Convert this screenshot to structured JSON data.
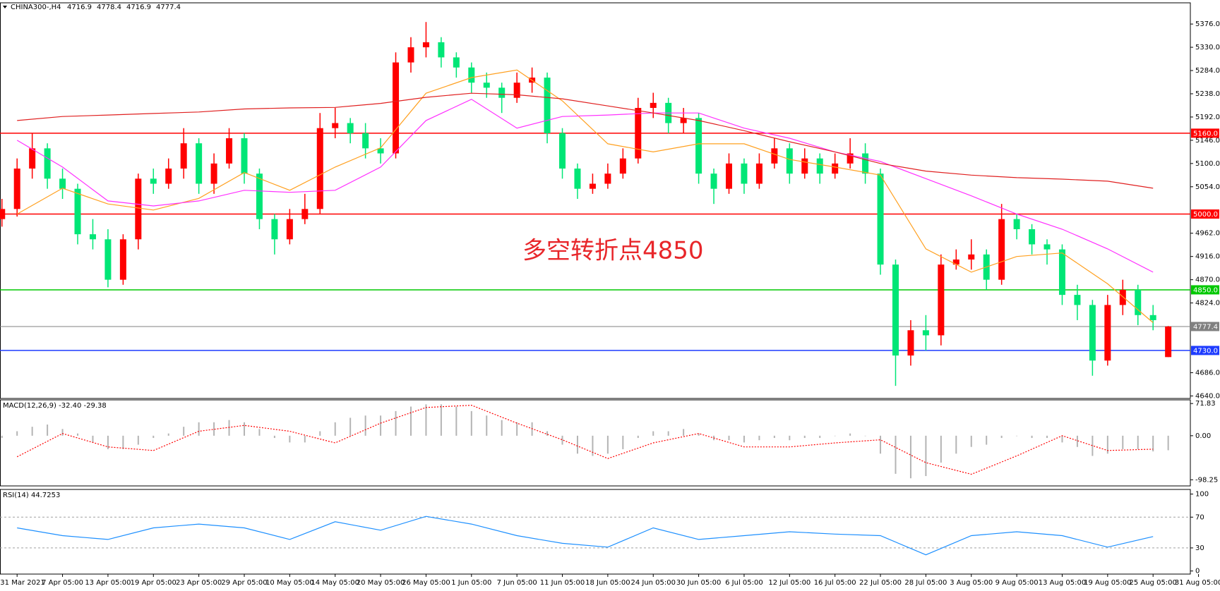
{
  "chart_data": [
    {
      "type": "candlestick",
      "title": "CHINA300-,H4",
      "categories": [
        "31 Mar 2021",
        "7 Apr 05:00",
        "13 Apr 05:00",
        "19 Apr 05:00",
        "23 Apr 05:00",
        "29 Apr 05:00",
        "10 May 05:00",
        "14 May 05:00",
        "20 May 05:00",
        "26 May 05:00",
        "1 Jun 05:00",
        "7 Jun 05:00",
        "11 Jun 05:00",
        "18 Jun 05:00",
        "24 Jun 05:00",
        "30 Jun 05:00",
        "6 Jul 05:00",
        "12 Jul 05:00",
        "16 Jul 05:00",
        "22 Jul 05:00",
        "28 Jul 05:00",
        "3 Aug 05:00",
        "9 Aug 05:00",
        "13 Aug 05:00",
        "19 Aug 05:00",
        "25 Aug 05:00",
        "31 Aug 05:00"
      ],
      "candles": {
        "open": [
          4990,
          5010,
          5090,
          5130,
          5070,
          5050,
          4960,
          4950,
          4870,
          4950,
          5070,
          5060,
          5090,
          5140,
          5060,
          5100,
          5150,
          5080,
          4990,
          4950,
          4990,
          5010,
          5170,
          5180,
          5160,
          5130,
          5120,
          5300,
          5330,
          5340,
          5310,
          5290,
          5260,
          5250,
          5230,
          5260,
          5270,
          5160,
          5090,
          5050,
          5060,
          5080,
          5110,
          5210,
          5220,
          5180,
          5190,
          5080,
          5050,
          5100,
          5060,
          5100,
          5130,
          5080,
          5110,
          5080,
          5100,
          5120,
          5080,
          4900,
          4720,
          4770,
          4760,
          4900,
          4910,
          4920,
          4870,
          4990,
          4970,
          4940,
          4930,
          4840,
          4820,
          4710,
          4820,
          4850,
          4800,
          4716.9
        ],
        "high": [
          5030,
          5110,
          5160,
          5140,
          5090,
          5060,
          4990,
          4970,
          4960,
          5080,
          5090,
          5110,
          5170,
          5150,
          5120,
          5170,
          5160,
          5090,
          5000,
          5010,
          5040,
          5200,
          5210,
          5190,
          5180,
          5150,
          5320,
          5350,
          5380,
          5350,
          5320,
          5300,
          5280,
          5260,
          5280,
          5290,
          5280,
          5170,
          5100,
          5080,
          5100,
          5130,
          5230,
          5240,
          5230,
          5210,
          5200,
          5090,
          5120,
          5110,
          5120,
          5150,
          5140,
          5130,
          5120,
          5120,
          5150,
          5140,
          5090,
          4910,
          4790,
          4800,
          4920,
          4930,
          4950,
          4930,
          5020,
          5000,
          4980,
          4950,
          4940,
          4860,
          4830,
          4840,
          4870,
          4860,
          4820,
          4778.4
        ],
        "low": [
          4975,
          4995,
          5070,
          5050,
          5030,
          4940,
          4930,
          4855,
          4860,
          4930,
          5040,
          5050,
          5070,
          5040,
          5040,
          5090,
          5060,
          4970,
          4920,
          4940,
          4980,
          5000,
          5150,
          5140,
          5110,
          5100,
          5110,
          5280,
          5310,
          5290,
          5270,
          5240,
          5230,
          5200,
          5220,
          5240,
          5140,
          5070,
          5030,
          5040,
          5050,
          5070,
          5100,
          5190,
          5160,
          5160,
          5060,
          5020,
          5040,
          5040,
          5050,
          5090,
          5060,
          5070,
          5060,
          5070,
          5090,
          5060,
          4880,
          4660,
          4700,
          4730,
          4740,
          4890,
          4890,
          4850,
          4860,
          4950,
          4920,
          4900,
          4820,
          4790,
          4680,
          4700,
          4800,
          4780,
          4770,
          4716.9
        ],
        "close": [
          5010,
          5090,
          5130,
          5070,
          5050,
          4960,
          4950,
          4870,
          4950,
          5070,
          5060,
          5090,
          5140,
          5060,
          5100,
          5150,
          5080,
          4990,
          4950,
          4990,
          5010,
          5170,
          5180,
          5160,
          5130,
          5120,
          5300,
          5330,
          5340,
          5310,
          5290,
          5260,
          5250,
          5230,
          5260,
          5270,
          5160,
          5090,
          5050,
          5060,
          5080,
          5110,
          5210,
          5220,
          5180,
          5190,
          5080,
          5050,
          5100,
          5060,
          5100,
          5130,
          5080,
          5110,
          5080,
          5100,
          5120,
          5080,
          4900,
          4720,
          4770,
          4760,
          4900,
          4910,
          4920,
          4870,
          4990,
          4970,
          4940,
          4930,
          4840,
          4820,
          4710,
          4820,
          4850,
          4800,
          4790,
          4777.4
        ]
      },
      "up_color": "#ff0000",
      "down_color": "#00e676",
      "series": [
        {
          "color": "#ffa020",
          "values": [
            5000,
            5051,
            5020,
            5008,
            5031,
            5082,
            5047,
            5093,
            5131,
            5239,
            5270,
            5285,
            5224,
            5139,
            5123,
            5139,
            5139,
            5108,
            5093,
            5077,
            4931,
            4885,
            4916,
            4923,
            4862,
            4785,
            null
          ]
        },
        {
          "color": "#ff30ff",
          "values": [
            5146,
            5093,
            5026,
            5016,
            5026,
            5047,
            5043,
            5047,
            5093,
            5185,
            5227,
            5170,
            5193,
            5196,
            5200,
            5200,
            5170,
            5150,
            5123,
            5104,
            5070,
            5036,
            5000,
            4970,
            4931,
            4885,
            null
          ]
        },
        {
          "color": "#e02020",
          "values": [
            5185,
            5193,
            5196,
            5199,
            5202,
            5208,
            5210,
            5211,
            5219,
            5231,
            5239,
            5236,
            5228,
            5214,
            5200,
            5185,
            5165,
            5143,
            5123,
            5100,
            5085,
            5077,
            5072,
            5069,
            5065,
            5051,
            null
          ]
        }
      ],
      "levels": [
        {
          "value": 5160,
          "label": "5160.0",
          "color": "#ff0000"
        },
        {
          "value": 5000,
          "label": "5000.0",
          "color": "#ff0000"
        },
        {
          "value": 4850,
          "label": "4850.0",
          "color": "#00c800"
        },
        {
          "value": 4777.4,
          "color": "#808080"
        },
        {
          "value": 4730,
          "label": "4730.0",
          "color": "#1e3cff"
        }
      ],
      "annotation": {
        "text": "多空转折点4850",
        "color": "#e8262a"
      },
      "ylim": [
        4635,
        5418
      ],
      "yticks": [
        {
          "value": 5376,
          "label": "5376.0"
        },
        {
          "value": 5330,
          "label": "5330.0"
        },
        {
          "value": 5284,
          "label": "5284.0"
        },
        {
          "value": 5238,
          "label": "5238.0"
        },
        {
          "value": 5192,
          "label": "5192.0"
        },
        {
          "value": 5146,
          "label": "5146.0"
        },
        {
          "value": 5100,
          "label": "5100.0"
        },
        {
          "value": 5054,
          "label": "5054.0"
        },
        {
          "value": 4962,
          "label": "4962.0"
        },
        {
          "value": 4916,
          "label": "4916.0"
        },
        {
          "value": 4870,
          "label": "4870.0"
        },
        {
          "value": 4824,
          "label": "4824.0"
        },
        {
          "value": 4686,
          "label": "4686.0"
        },
        {
          "value": 4640,
          "label": "4640.0"
        }
      ]
    },
    {
      "type": "macd",
      "title": "MACD(12,26,9) -32.40 -29.38",
      "histogram": [
        -5,
        10,
        20,
        25,
        15,
        5,
        -15,
        -30,
        -30,
        -20,
        -5,
        5,
        20,
        30,
        30,
        35,
        30,
        15,
        -5,
        -15,
        -15,
        10,
        30,
        40,
        45,
        45,
        55,
        65,
        70,
        70,
        65,
        55,
        45,
        35,
        30,
        30,
        10,
        -20,
        -40,
        -45,
        -40,
        -30,
        -5,
        10,
        10,
        15,
        5,
        -10,
        -10,
        -15,
        -10,
        -5,
        -10,
        -5,
        -5,
        0,
        5,
        0,
        -40,
        -85,
        -95,
        -90,
        -60,
        -40,
        -25,
        -20,
        -5,
        0,
        -5,
        -5,
        -15,
        -25,
        -45,
        -40,
        -30,
        -30,
        -35,
        -32.4
      ],
      "histogram_color": "#b4b4b4",
      "series": [
        {
          "color": "#ff0000",
          "dash": "dotted",
          "values": [
            -47,
            5,
            -25,
            -33,
            10,
            23,
            10,
            -16,
            28,
            63,
            68,
            28,
            -9,
            -51,
            -16,
            5,
            -25,
            -25,
            -16,
            -9,
            -60,
            -86,
            -45,
            0,
            -33,
            -30,
            null
          ]
        }
      ],
      "ylim": [
        -112,
        80
      ],
      "yticks": [
        {
          "value": 71.83,
          "label": "71.83"
        },
        {
          "value": 0,
          "label": "0.00"
        },
        {
          "value": -98.25,
          "label": "-98.25"
        }
      ]
    },
    {
      "type": "line",
      "title": "RSI(14) 44.7253",
      "series": [
        {
          "color": "#1e90ff",
          "values": [
            56,
            46,
            41,
            56,
            61,
            56,
            41,
            64,
            53,
            71,
            61,
            46,
            36,
            31,
            56,
            41,
            46,
            51,
            48,
            46,
            21,
            46,
            51,
            46,
            31,
            44.7253,
            null
          ]
        }
      ],
      "dashed_levels": [
        70,
        30
      ],
      "ylim": [
        -4,
        106
      ],
      "yticks": [
        100,
        70,
        30,
        0
      ]
    }
  ]
}
